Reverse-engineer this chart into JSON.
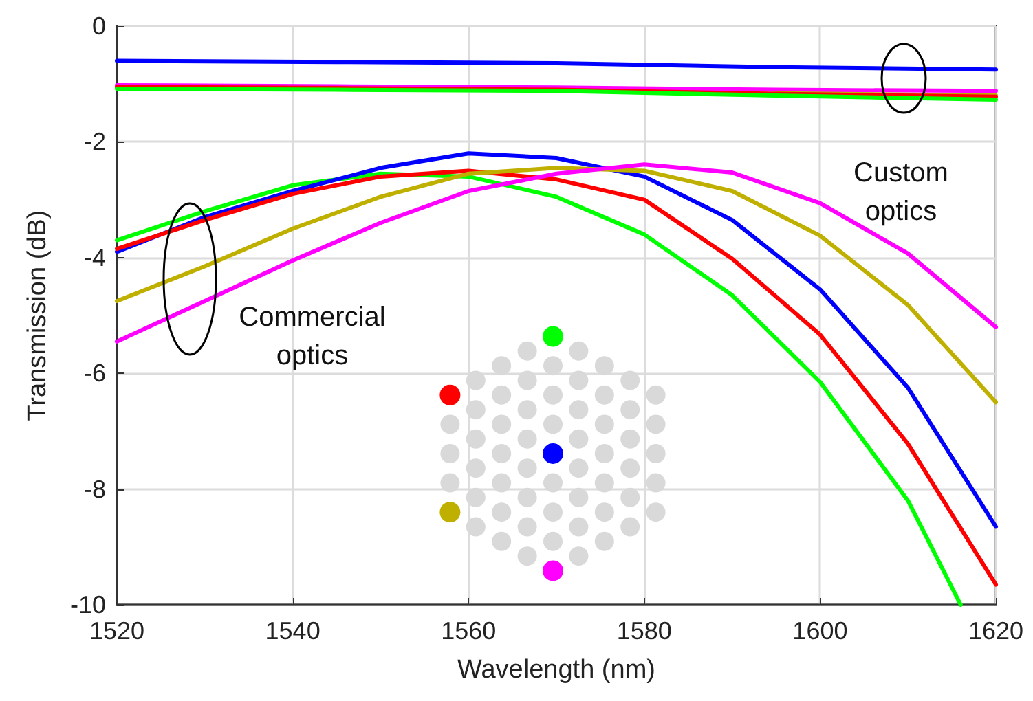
{
  "chart_data": {
    "type": "line",
    "xlabel": "Wavelength (nm)",
    "ylabel": "Transmission (dB)",
    "x": [
      1520,
      1530,
      1540,
      1550,
      1560,
      1570,
      1580,
      1590,
      1600,
      1610,
      1620
    ],
    "series": [
      {
        "color": "#0000ff",
        "x": [
          1520,
          1545,
          1570,
          1595,
          1620
        ],
        "values": [
          -0.6,
          -0.62,
          -0.64,
          -0.71,
          -0.75
        ]
      },
      {
        "color": "#ff00ff",
        "x": [
          1520,
          1545,
          1570,
          1595,
          1620
        ],
        "values": [
          -1.02,
          -1.04,
          -1.06,
          -1.1,
          -1.12
        ]
      },
      {
        "color": "#bfb000",
        "x": [
          1595,
          1620
        ],
        "values": [
          -1.16,
          -1.2
        ]
      },
      {
        "color": "#ff0000",
        "x": [
          1520,
          1545,
          1570,
          1595,
          1620
        ],
        "values": [
          -1.05,
          -1.07,
          -1.1,
          -1.17,
          -1.22
        ]
      },
      {
        "color": "#00ff00",
        "x": [
          1520,
          1545,
          1570,
          1595,
          1620
        ],
        "values": [
          -1.08,
          -1.1,
          -1.12,
          -1.2,
          -1.27
        ]
      },
      {
        "color": "#00ff00",
        "x": [
          1520,
          1530,
          1540,
          1550,
          1560,
          1570,
          1580,
          1590,
          1600,
          1610,
          1616
        ],
        "values": [
          -3.7,
          -3.2,
          -2.75,
          -2.55,
          -2.6,
          -2.95,
          -3.6,
          -4.65,
          -6.15,
          -8.2,
          -10
        ]
      },
      {
        "color": "#0000ff",
        "values": [
          -3.9,
          -3.3,
          -2.85,
          -2.45,
          -2.2,
          -2.28,
          -2.6,
          -3.35,
          -4.55,
          -6.25,
          -8.65
        ]
      },
      {
        "color": "#ff0000",
        "values": [
          -3.85,
          -3.35,
          -2.9,
          -2.6,
          -2.5,
          -2.65,
          -3.0,
          -4.02,
          -5.33,
          -7.22,
          -9.65
        ]
      },
      {
        "color": "#bfb000",
        "values": [
          -4.75,
          -4.15,
          -3.5,
          -2.95,
          -2.55,
          -2.45,
          -2.5,
          -2.85,
          -3.62,
          -4.82,
          -6.5
        ]
      },
      {
        "color": "#ff00ff",
        "values": [
          -5.45,
          -4.75,
          -4.05,
          -3.4,
          -2.85,
          -2.55,
          -2.39,
          -2.53,
          -3.06,
          -3.93,
          -5.2
        ]
      }
    ],
    "xlim": [
      1520,
      1620
    ],
    "xticks": [
      1520,
      1540,
      1560,
      1580,
      1600,
      1620
    ],
    "ylim": [
      -10,
      0
    ],
    "yticks": [
      -10,
      -8,
      -6,
      -4,
      -2,
      0
    ],
    "grid": true,
    "marker": "none",
    "line_style": "solid",
    "annotations": [
      "Custom\noptics",
      "Commercial\noptics"
    ]
  }
}
